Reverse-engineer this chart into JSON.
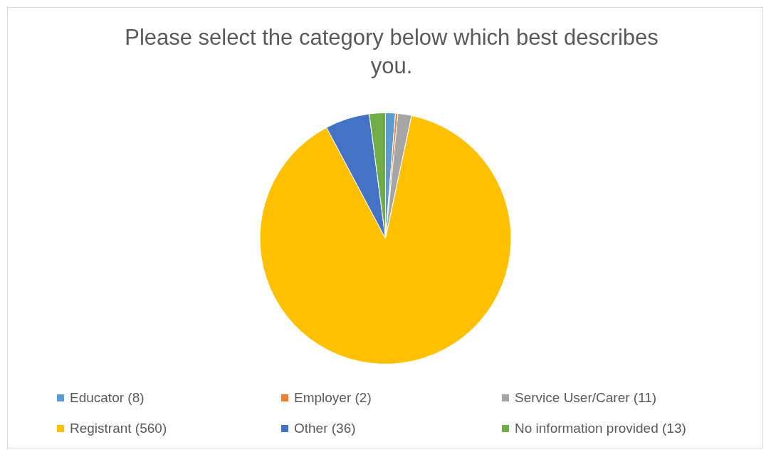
{
  "chart_data": {
    "type": "pie",
    "title": "Please select the category below which best describes you.",
    "categories": [
      "Educator (8)",
      "Employer (2)",
      "Service User/Carer (11)",
      "Registrant (560)",
      "Other (36)",
      "No information provided (13)"
    ],
    "values": [
      8,
      2,
      11,
      560,
      36,
      13
    ],
    "colors": [
      "#5b9bd5",
      "#ed7d31",
      "#a5a5a5",
      "#ffc000",
      "#4472c4",
      "#70ad47"
    ],
    "legend": "bottom"
  }
}
